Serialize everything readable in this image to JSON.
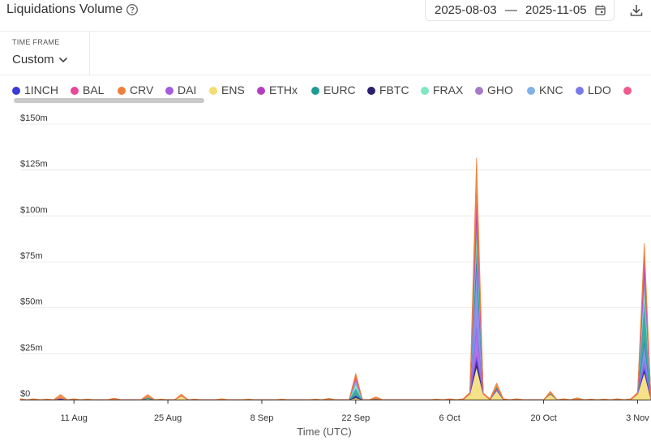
{
  "header": {
    "title": "Liquidations Volume",
    "date_start": "2025-08-03",
    "date_separator": "—",
    "date_end": "2025-11-05"
  },
  "time_frame": {
    "label": "TIME FRAME",
    "value": "Custom"
  },
  "colors": {
    "1INCH": "#3b3bd6",
    "BAL": "#e8479a",
    "CRV": "#ef7f3a",
    "DAI": "#a35be0",
    "ENS": "#f3dc72",
    "ETHx": "#b53fbf",
    "EURC": "#1f9a93",
    "FBTC": "#2c1f6e",
    "FRAX": "#7fe6c5",
    "GHO": "#a77bc9",
    "KNC": "#7fb2e6",
    "LDO": "#7a7ae8",
    "next": "#ee5a8a"
  },
  "legend": [
    {
      "name": "1INCH"
    },
    {
      "name": "BAL"
    },
    {
      "name": "CRV"
    },
    {
      "name": "DAI"
    },
    {
      "name": "ENS"
    },
    {
      "name": "ETHx"
    },
    {
      "name": "EURC"
    },
    {
      "name": "FBTC"
    },
    {
      "name": "FRAX"
    },
    {
      "name": "GHO"
    },
    {
      "name": "KNC"
    },
    {
      "name": "LDO"
    },
    {
      "name": ""
    }
  ],
  "chart_data": {
    "type": "area",
    "stacked": true,
    "xlabel": "Time (UTC)",
    "ylabel": "",
    "ylim": [
      0,
      150
    ],
    "y_unit": "m",
    "y_ticks": [
      "$0",
      "$25m",
      "$50m",
      "$75m",
      "$100m",
      "$125m",
      "$150m"
    ],
    "x_range": [
      "2025-08-03",
      "2025-11-05"
    ],
    "x_ticks": [
      "11 Aug",
      "25 Aug",
      "8 Sep",
      "22 Sep",
      "6 Oct",
      "20 Oct",
      "3 Nov"
    ],
    "grid": true,
    "series": [
      {
        "name": "ENS",
        "x": [
          "2025-08-03",
          "2025-08-08",
          "2025-08-09",
          "2025-08-10",
          "2025-08-21",
          "2025-08-22",
          "2025-08-23",
          "2025-08-26",
          "2025-08-27",
          "2025-08-28",
          "2025-09-21",
          "2025-09-22",
          "2025-09-23",
          "2025-10-08",
          "2025-10-09",
          "2025-10-10",
          "2025-10-11",
          "2025-10-12",
          "2025-10-13",
          "2025-10-14",
          "2025-10-15",
          "2025-10-20",
          "2025-10-21",
          "2025-10-22",
          "2025-11-02",
          "2025-11-03",
          "2025-11-04",
          "2025-11-05"
        ],
        "values": [
          0,
          0,
          0.3,
          0,
          0,
          0.5,
          0,
          0,
          2,
          0,
          0,
          1,
          0,
          0,
          3,
          18,
          3,
          0,
          5,
          0,
          0,
          0,
          3,
          0,
          0,
          3,
          15,
          0
        ]
      },
      {
        "name": "FBTC",
        "x": [
          "2025-08-03",
          "2025-09-21",
          "2025-09-22",
          "2025-09-23",
          "2025-10-09",
          "2025-10-10",
          "2025-10-11",
          "2025-11-03",
          "2025-11-04",
          "2025-11-05"
        ],
        "values": [
          0,
          0,
          0.8,
          0,
          0,
          3,
          0,
          0,
          1,
          0
        ]
      },
      {
        "name": "1INCH",
        "x": [
          "2025-08-03",
          "2025-08-08",
          "2025-08-09",
          "2025-08-10",
          "2025-09-21",
          "2025-09-22",
          "2025-09-23",
          "2025-10-09",
          "2025-10-10",
          "2025-10-11",
          "2025-11-03",
          "2025-11-04",
          "2025-11-05"
        ],
        "values": [
          0,
          0,
          0.5,
          0,
          0,
          0.5,
          0,
          0,
          3,
          0,
          0,
          2,
          0
        ]
      },
      {
        "name": "DAI",
        "x": [
          "2025-08-03",
          "2025-10-09",
          "2025-10-10",
          "2025-10-11",
          "2025-10-12",
          "2025-10-13",
          "2025-10-14",
          "2025-11-03",
          "2025-11-04",
          "2025-11-05"
        ],
        "values": [
          0,
          0,
          15,
          0,
          0,
          1,
          0,
          0,
          3,
          0
        ]
      },
      {
        "name": "LDO",
        "x": [
          "2025-08-03",
          "2025-10-09",
          "2025-10-10",
          "2025-10-11",
          "2025-11-03",
          "2025-11-04",
          "2025-11-05"
        ],
        "values": [
          0,
          0,
          35,
          0,
          0,
          10,
          0
        ]
      },
      {
        "name": "EURC",
        "x": [
          "2025-08-03",
          "2025-08-21",
          "2025-08-22",
          "2025-08-23",
          "2025-09-21",
          "2025-09-22",
          "2025-09-23",
          "2025-09-24",
          "2025-09-25",
          "2025-09-26",
          "2025-10-09",
          "2025-10-10",
          "2025-10-11",
          "2025-10-12",
          "2025-10-13",
          "2025-10-14",
          "2025-10-19",
          "2025-10-20",
          "2025-10-21",
          "2025-10-22",
          "2025-11-03",
          "2025-11-04",
          "2025-11-05"
        ],
        "values": [
          0,
          0,
          0.8,
          0,
          0,
          4,
          0,
          0,
          0.5,
          0,
          0,
          12,
          0,
          0,
          1,
          0,
          0,
          0,
          0.5,
          0,
          0,
          25,
          0
        ]
      },
      {
        "name": "FRAX",
        "x": [
          "2025-08-03",
          "2025-09-21",
          "2025-09-22",
          "2025-09-23",
          "2025-10-09",
          "2025-10-10",
          "2025-10-11",
          "2025-11-03",
          "2025-11-04",
          "2025-11-05"
        ],
        "values": [
          0,
          0,
          2,
          0,
          0,
          5,
          0,
          0,
          6,
          0
        ]
      },
      {
        "name": "KNC",
        "x": [
          "2025-08-03",
          "2025-09-21",
          "2025-09-22",
          "2025-09-23",
          "2025-10-09",
          "2025-10-10",
          "2025-10-11",
          "2025-11-03",
          "2025-11-04",
          "2025-11-05"
        ],
        "values": [
          0,
          0,
          2,
          0,
          0,
          5,
          0,
          0,
          4,
          0
        ]
      },
      {
        "name": "GHO",
        "x": [
          "2025-08-03",
          "2025-09-21",
          "2025-09-22",
          "2025-09-23",
          "2025-10-09",
          "2025-10-10",
          "2025-10-11",
          "2025-11-03",
          "2025-11-04",
          "2025-11-05"
        ],
        "values": [
          0,
          0,
          1.5,
          0,
          0,
          5,
          0,
          0,
          5,
          0
        ]
      },
      {
        "name": "ETHx",
        "x": [
          "2025-08-03",
          "2025-10-09",
          "2025-10-10",
          "2025-10-11",
          "2025-11-03",
          "2025-11-04",
          "2025-11-05"
        ],
        "values": [
          0,
          0,
          8,
          0,
          0,
          5,
          0
        ]
      },
      {
        "name": "BAL",
        "x": [
          "2025-08-03",
          "2025-09-21",
          "2025-09-22",
          "2025-09-23",
          "2025-10-09",
          "2025-10-10",
          "2025-10-11",
          "2025-11-03",
          "2025-11-04",
          "2025-11-05"
        ],
        "values": [
          0,
          0,
          1,
          0,
          0,
          3,
          0,
          0,
          4,
          0
        ]
      },
      {
        "name": "CRV",
        "x": [
          "2025-08-03",
          "2025-08-05",
          "2025-08-06",
          "2025-08-07",
          "2025-08-08",
          "2025-08-09",
          "2025-08-10",
          "2025-08-11",
          "2025-08-12",
          "2025-08-13",
          "2025-08-16",
          "2025-08-17",
          "2025-08-18",
          "2025-08-21",
          "2025-08-22",
          "2025-08-23",
          "2025-08-24",
          "2025-08-26",
          "2025-08-27",
          "2025-08-28",
          "2025-08-29",
          "2025-09-01",
          "2025-09-02",
          "2025-09-03",
          "2025-09-06",
          "2025-09-07",
          "2025-09-11",
          "2025-09-12",
          "2025-09-16",
          "2025-09-17",
          "2025-09-18",
          "2025-09-19",
          "2025-09-21",
          "2025-09-22",
          "2025-09-23",
          "2025-09-24",
          "2025-09-25",
          "2025-09-26",
          "2025-09-27",
          "2025-10-04",
          "2025-10-05",
          "2025-10-06",
          "2025-10-08",
          "2025-10-09",
          "2025-10-10",
          "2025-10-11",
          "2025-10-12",
          "2025-10-13",
          "2025-10-14",
          "2025-10-15",
          "2025-10-16",
          "2025-10-17",
          "2025-10-20",
          "2025-10-21",
          "2025-10-22",
          "2025-10-23",
          "2025-10-24",
          "2025-10-25",
          "2025-10-26",
          "2025-10-27",
          "2025-10-28",
          "2025-10-29",
          "2025-10-30",
          "2025-10-31",
          "2025-11-01",
          "2025-11-02",
          "2025-11-03",
          "2025-11-04",
          "2025-11-05"
        ],
        "values": [
          0.5,
          0.5,
          0,
          0.3,
          0,
          2,
          0,
          0.5,
          0,
          0.3,
          0,
          0.8,
          0,
          0,
          1.5,
          0,
          0.3,
          0,
          1,
          0,
          0.3,
          0,
          0.5,
          0,
          0.3,
          0,
          0.3,
          0,
          0.3,
          0,
          0.7,
          0,
          0,
          1.5,
          0,
          0,
          1,
          0,
          0,
          0.3,
          0,
          0.5,
          0.5,
          1,
          19.5,
          0.5,
          0.5,
          2,
          0.5,
          0,
          0.5,
          0,
          0,
          1,
          0,
          0.5,
          0,
          1,
          0,
          0.3,
          0,
          0.3,
          0,
          0.5,
          0,
          0.5,
          1,
          5,
          0
        ]
      }
    ]
  }
}
